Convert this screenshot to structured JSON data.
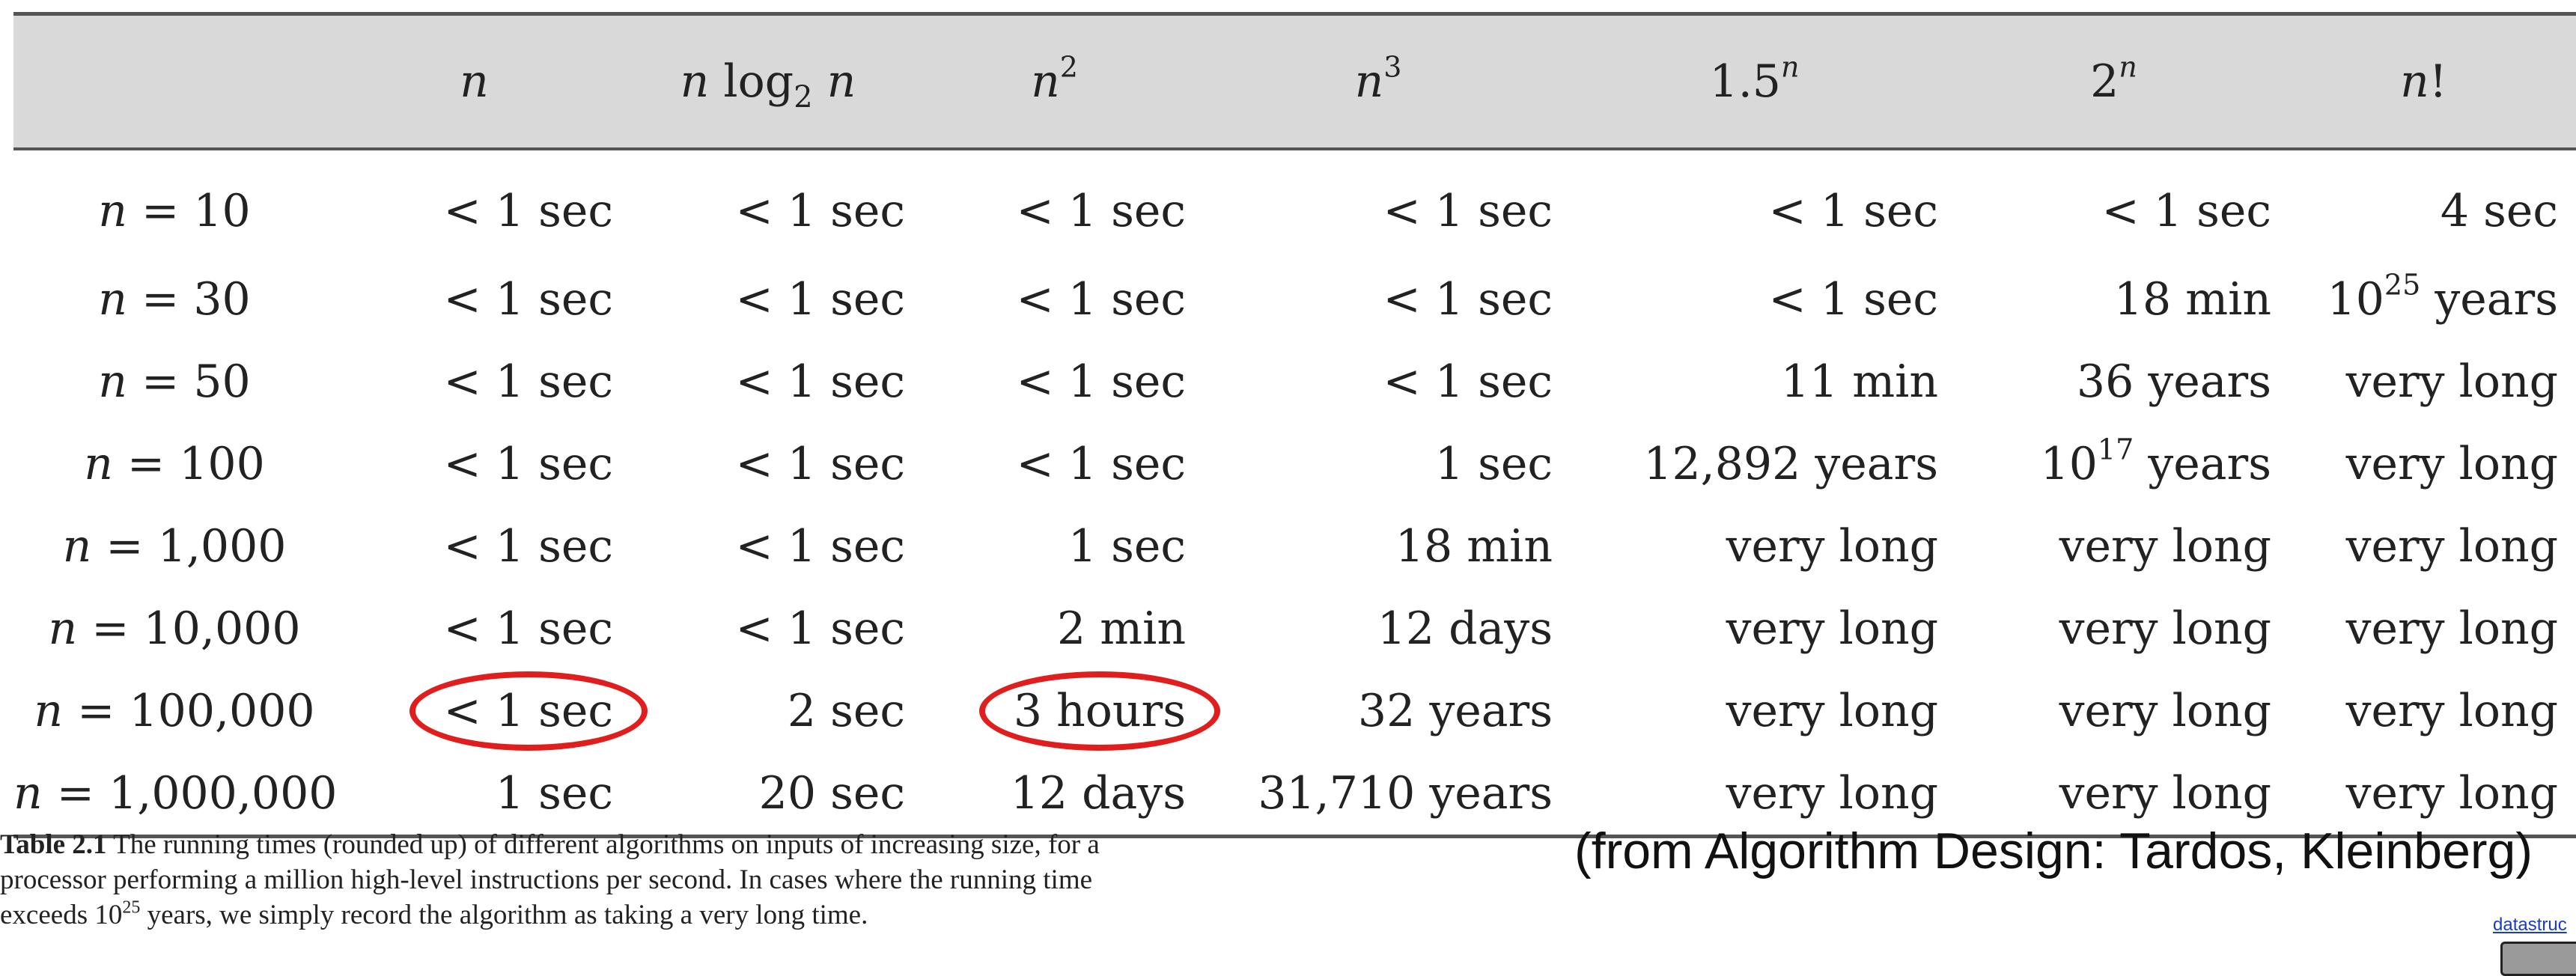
{
  "table": {
    "headers": [
      "",
      "n",
      "n log2 n",
      "n^2",
      "n^3",
      "1.5^n",
      "2^n",
      "n!"
    ],
    "rows": [
      {
        "label": "n = 10",
        "cells": [
          "< 1 sec",
          "< 1 sec",
          "< 1 sec",
          "< 1 sec",
          "< 1 sec",
          "< 1 sec",
          "4 sec"
        ]
      },
      {
        "label": "n = 30",
        "cells": [
          "< 1 sec",
          "< 1 sec",
          "< 1 sec",
          "< 1 sec",
          "< 1 sec",
          "18 min",
          "10^25 years"
        ]
      },
      {
        "label": "n = 50",
        "cells": [
          "< 1 sec",
          "< 1 sec",
          "< 1 sec",
          "< 1 sec",
          "11 min",
          "36 years",
          "very long"
        ]
      },
      {
        "label": "n = 100",
        "cells": [
          "< 1 sec",
          "< 1 sec",
          "< 1 sec",
          "1 sec",
          "12,892 years",
          "10^17 years",
          "very long"
        ]
      },
      {
        "label": "n = 1,000",
        "cells": [
          "< 1 sec",
          "< 1 sec",
          "1 sec",
          "18 min",
          "very long",
          "very long",
          "very long"
        ]
      },
      {
        "label": "n = 10,000",
        "cells": [
          "< 1 sec",
          "< 1 sec",
          "2 min",
          "12 days",
          "very long",
          "very long",
          "very long"
        ]
      },
      {
        "label": "n = 100,000",
        "cells": [
          "< 1 sec",
          "2 sec",
          "3 hours",
          "32 years",
          "very long",
          "very long",
          "very long"
        ]
      },
      {
        "label": "n = 1,000,000",
        "cells": [
          "1 sec",
          "20 sec",
          "12 days",
          "31,710 years",
          "very long",
          "very long",
          "very long"
        ]
      }
    ]
  },
  "caption": {
    "label": "Table 2.1",
    "text_before": "The running times (rounded up) of different algorithms on inputs of increasing size, for a processor performing a million high-level instructions per second. In cases where the running time exceeds 10",
    "text_exp": "25",
    "text_after": " years, we simply record the algorithm as taking a very long time."
  },
  "credit": "(from Algorithm Design: Tardos, Kleinberg)",
  "footer_link": "datastruc",
  "highlight_color": "#e01e1e"
}
